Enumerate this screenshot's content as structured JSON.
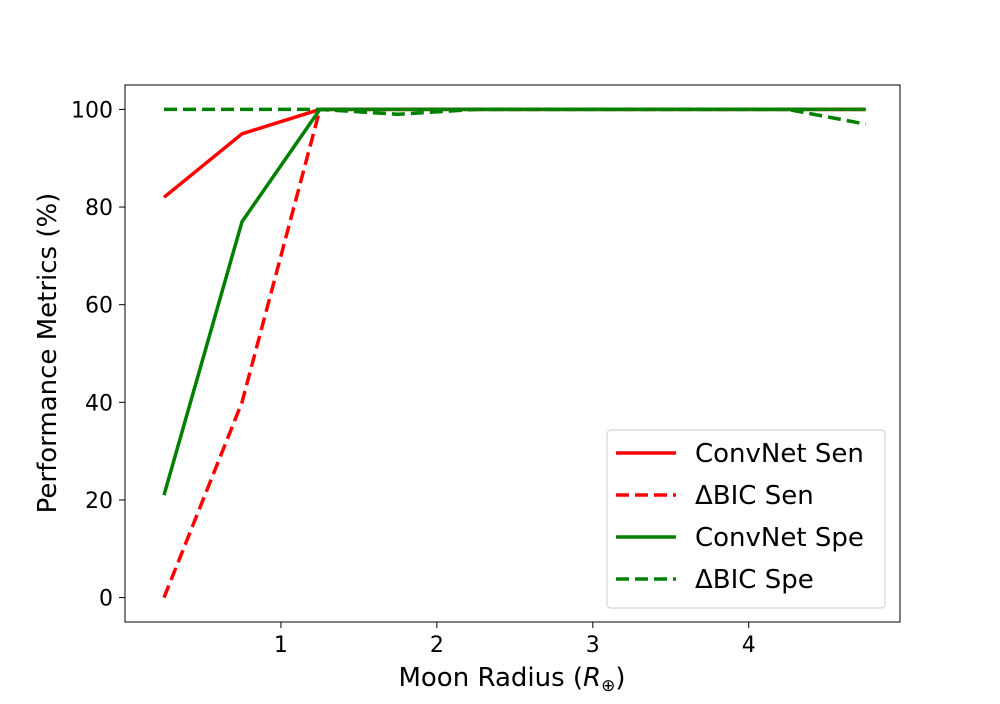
{
  "chart_data": {
    "type": "line",
    "title": "",
    "xlabel": "Moon Radius (R⊕)",
    "ylabel": "Performance Metrics (%)",
    "xlim": [
      0.0,
      4.97
    ],
    "ylim": [
      -5,
      105
    ],
    "xticks": [
      1,
      2,
      3,
      4
    ],
    "yticks": [
      0,
      20,
      40,
      60,
      80,
      100
    ],
    "xtick_labels": [
      "1",
      "2",
      "3",
      "4"
    ],
    "ytick_labels": [
      "0",
      "20",
      "40",
      "60",
      "80",
      "100"
    ],
    "grid": false,
    "legend_position": "lower-right",
    "series": [
      {
        "name": "ConvNet Sen",
        "color": "#ff0000",
        "style": "solid",
        "x": [
          0.25,
          0.75,
          1.25,
          1.75,
          2.25,
          2.75,
          3.25,
          3.75,
          4.25,
          4.75
        ],
        "y": [
          82,
          95,
          100,
          100,
          100,
          100,
          100,
          100,
          100,
          100
        ]
      },
      {
        "name": "ΔBIC Sen",
        "color": "#ff0000",
        "style": "dashed",
        "x": [
          0.25,
          0.75,
          1.25,
          1.75,
          2.25,
          2.75,
          3.25,
          3.75,
          4.25,
          4.75
        ],
        "y": [
          0,
          40,
          100,
          100,
          100,
          100,
          100,
          100,
          100,
          100
        ]
      },
      {
        "name": "ConvNet Spe",
        "color": "#008000",
        "style": "solid",
        "x": [
          0.25,
          0.75,
          1.25,
          1.75,
          2.25,
          2.75,
          3.25,
          3.75,
          4.25,
          4.75
        ],
        "y": [
          21,
          77,
          100,
          100,
          100,
          100,
          100,
          100,
          100,
          100
        ]
      },
      {
        "name": "ΔBIC Spe",
        "color": "#008000",
        "style": "dashed",
        "x": [
          0.25,
          0.75,
          1.25,
          1.75,
          2.25,
          2.75,
          3.25,
          3.75,
          4.25,
          4.75
        ],
        "y": [
          100,
          100,
          100,
          99,
          100,
          100,
          100,
          100,
          100,
          97
        ]
      }
    ]
  }
}
